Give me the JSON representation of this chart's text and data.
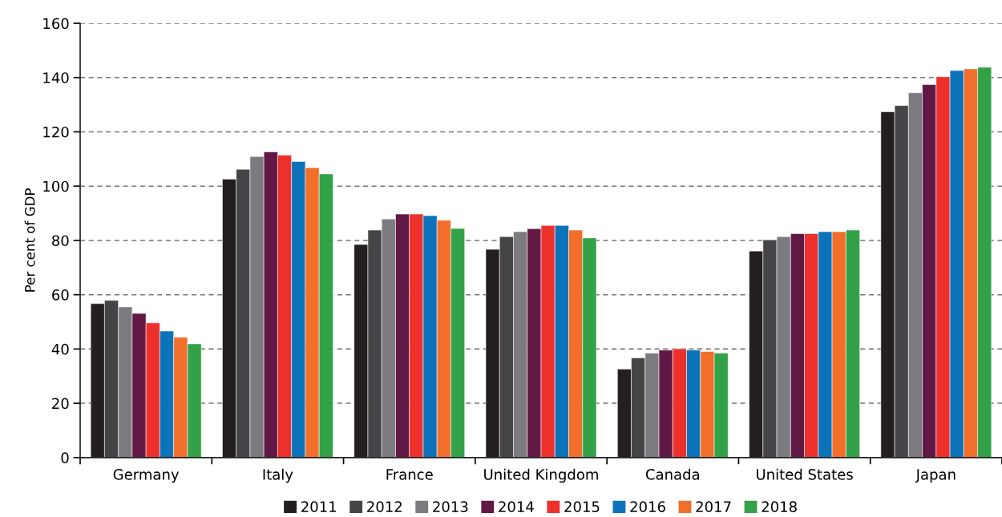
{
  "chart_data": {
    "type": "bar",
    "ylabel": "Per cent of GDP",
    "categories": [
      "Germany",
      "Italy",
      "France",
      "United Kingdom",
      "Canada",
      "United States",
      "Japan"
    ],
    "series": [
      {
        "name": "2011",
        "color": "#231f20",
        "values": [
          56.7,
          102.6,
          78.5,
          76.7,
          32.6,
          76.1,
          127.4
        ]
      },
      {
        "name": "2012",
        "color": "#454547",
        "values": [
          57.9,
          106.2,
          83.8,
          81.4,
          36.7,
          80.2,
          129.7
        ]
      },
      {
        "name": "2013",
        "color": "#7b7b7f",
        "values": [
          55.5,
          110.9,
          87.9,
          83.2,
          38.5,
          81.4,
          134.4
        ]
      },
      {
        "name": "2014",
        "color": "#611845",
        "values": [
          53.1,
          112.6,
          89.7,
          84.3,
          39.6,
          82.5,
          137.4
        ]
      },
      {
        "name": "2015",
        "color": "#ee302c",
        "values": [
          49.6,
          111.4,
          89.7,
          85.5,
          40.1,
          82.5,
          140.3
        ]
      },
      {
        "name": "2016",
        "color": "#0c72ba",
        "values": [
          46.6,
          109.1,
          89.1,
          85.5,
          39.6,
          83.2,
          142.6
        ]
      },
      {
        "name": "2017",
        "color": "#f26f2b",
        "values": [
          44.3,
          106.8,
          87.4,
          83.8,
          39.1,
          83.2,
          143.2
        ]
      },
      {
        "name": "2018",
        "color": "#33a148",
        "values": [
          41.9,
          104.5,
          84.4,
          80.9,
          38.5,
          83.8,
          143.8
        ]
      }
    ],
    "ylim": [
      0,
      160
    ],
    "yticks": [
      0,
      20,
      40,
      60,
      80,
      100,
      120,
      140,
      160
    ],
    "grid": "y",
    "legend": "bottom"
  }
}
